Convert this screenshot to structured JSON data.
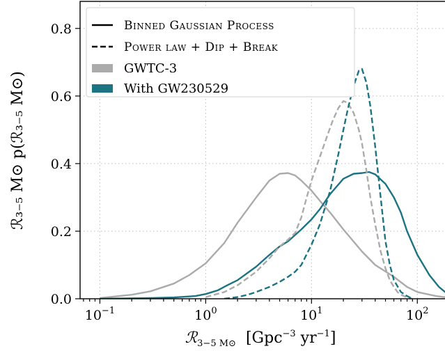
{
  "chart_data": {
    "type": "line",
    "xlabel_symbol": "ℛ",
    "xlabel_sub": "3−5 M",
    "xlabel_sub_tail": "⊙",
    "xlabel_units_open": "[Gpc",
    "xlabel_units_exp": "−3",
    "xlabel_units_mid": " yr",
    "xlabel_units_exp2": "−1",
    "xlabel_units_close": "]",
    "ylabel": "ℛ₃₋₅ M⊙ p(ℛ₃₋₅ M⊙)",
    "xscale": "log",
    "xlim": [
      0.065,
      200
    ],
    "ylim": [
      0,
      0.88
    ],
    "xticks": [
      {
        "value": 0.1,
        "base": "10",
        "exp": "−1"
      },
      {
        "value": 1,
        "base": "10",
        "exp": "0"
      },
      {
        "value": 10,
        "base": "10",
        "exp": "1"
      },
      {
        "value": 100,
        "base": "10",
        "exp": "2"
      }
    ],
    "yticks": [
      {
        "value": 0.0,
        "label": "0.0"
      },
      {
        "value": 0.2,
        "label": "0.2"
      },
      {
        "value": 0.4,
        "label": "0.4"
      },
      {
        "value": 0.6,
        "label": "0.6"
      },
      {
        "value": 0.8,
        "label": "0.8"
      }
    ],
    "grid": true,
    "legend_position": "top-left",
    "legend": [
      {
        "label": "Binned Gaussian Process",
        "style": "solid",
        "color": "#000000",
        "smallcaps": true
      },
      {
        "label": "Power law + Dip + Break",
        "style": "dashed",
        "color": "#000000",
        "smallcaps": true
      },
      {
        "label": "GWTC-3",
        "style": "patch",
        "color": "#ababab",
        "smallcaps": false
      },
      {
        "label": "With GW230529",
        "style": "patch",
        "color": "#1c7382",
        "smallcaps": false
      }
    ],
    "series": [
      {
        "model": "Binned Gaussian Process",
        "dataset": "GWTC-3",
        "style": "solid",
        "color": "#ababab",
        "x": [
          0.1,
          0.2,
          0.3,
          0.5,
          0.7,
          1.0,
          1.5,
          2.0,
          3.0,
          4.0,
          5.0,
          6.0,
          7.0,
          8.0,
          10,
          12,
          15,
          20,
          30,
          40,
          60,
          80,
          100,
          150,
          200
        ],
        "y": [
          0.002,
          0.012,
          0.022,
          0.045,
          0.07,
          0.105,
          0.165,
          0.225,
          0.3,
          0.35,
          0.37,
          0.372,
          0.365,
          0.35,
          0.32,
          0.29,
          0.255,
          0.205,
          0.14,
          0.1,
          0.065,
          0.035,
          0.02,
          0.008,
          0.003
        ]
      },
      {
        "model": "Binned Gaussian Process",
        "dataset": "With GW230529",
        "style": "solid",
        "color": "#1c7382",
        "x": [
          0.1,
          0.3,
          0.5,
          0.8,
          1.0,
          1.3,
          1.6,
          2.0,
          3.0,
          4.0,
          5.0,
          6.0,
          8.0,
          10,
          12,
          15,
          20,
          25,
          30,
          35,
          40,
          50,
          60,
          70,
          80,
          100,
          130,
          160,
          200
        ],
        "y": [
          0.0,
          0.002,
          0.004,
          0.008,
          0.014,
          0.025,
          0.04,
          0.055,
          0.095,
          0.13,
          0.155,
          0.17,
          0.205,
          0.235,
          0.265,
          0.31,
          0.355,
          0.37,
          0.372,
          0.375,
          0.368,
          0.34,
          0.3,
          0.255,
          0.2,
          0.13,
          0.07,
          0.035,
          0.01
        ]
      },
      {
        "model": "Power law + Dip + Break",
        "dataset": "GWTC-3",
        "style": "dashed",
        "color": "#ababab",
        "x": [
          1.0,
          1.5,
          2.0,
          3.0,
          4.0,
          5.0,
          6.0,
          7.0,
          8.0,
          9.0,
          10,
          12,
          14,
          16,
          18,
          20,
          22,
          25,
          28,
          30,
          33,
          36,
          40,
          45,
          50,
          55,
          60,
          65,
          70,
          80,
          90
        ],
        "y": [
          0.005,
          0.02,
          0.04,
          0.08,
          0.12,
          0.155,
          0.175,
          0.195,
          0.24,
          0.3,
          0.35,
          0.42,
          0.48,
          0.53,
          0.565,
          0.585,
          0.58,
          0.55,
          0.5,
          0.46,
          0.38,
          0.3,
          0.22,
          0.14,
          0.09,
          0.055,
          0.035,
          0.02,
          0.012,
          0.004,
          0.0
        ]
      },
      {
        "model": "Power law + Dip + Break",
        "dataset": "With GW230529",
        "style": "dashed",
        "color": "#1c7382",
        "x": [
          1.5,
          2.0,
          2.5,
          3.0,
          4.0,
          5.0,
          6.0,
          7.0,
          8.0,
          10,
          12,
          15,
          18,
          20,
          22,
          25,
          28,
          30,
          33,
          36,
          40,
          45,
          50,
          55,
          60,
          70,
          80,
          90
        ],
        "y": [
          0.0,
          0.005,
          0.012,
          0.02,
          0.035,
          0.05,
          0.065,
          0.08,
          0.1,
          0.16,
          0.22,
          0.32,
          0.43,
          0.5,
          0.56,
          0.63,
          0.675,
          0.68,
          0.64,
          0.57,
          0.45,
          0.3,
          0.17,
          0.1,
          0.055,
          0.02,
          0.008,
          0.0
        ]
      }
    ]
  }
}
